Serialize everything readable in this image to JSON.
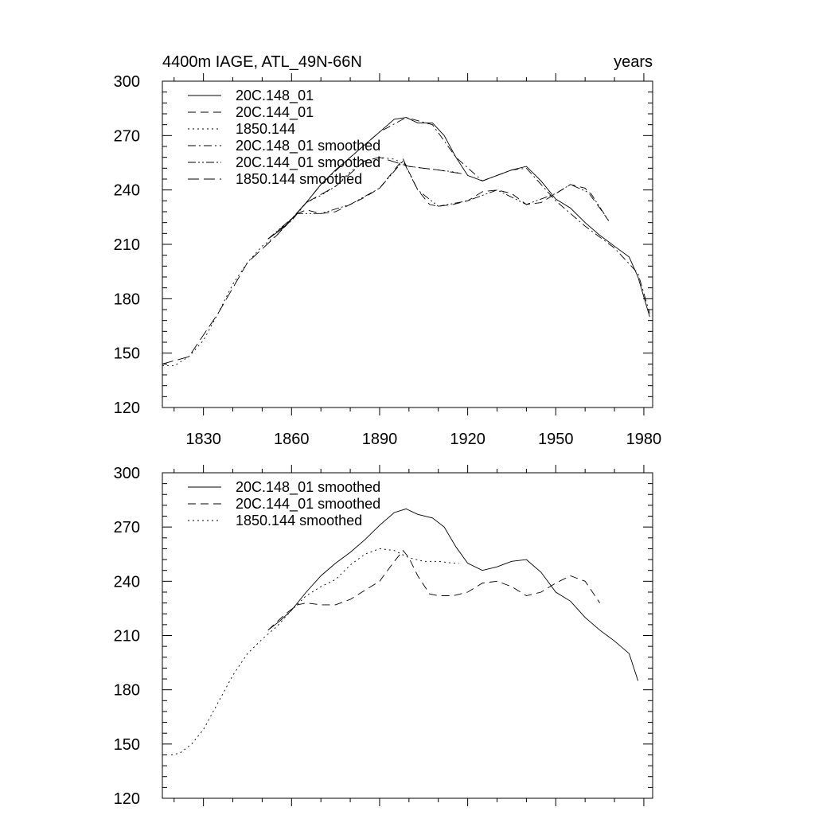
{
  "chart_data": [
    {
      "type": "line",
      "title_left": "4400m IAGE, ATL_49N-66N",
      "title_right": "years",
      "xlim": [
        1816,
        1983
      ],
      "ylim": [
        120,
        300
      ],
      "xticks": [
        1830,
        1860,
        1890,
        1920,
        1950,
        1980
      ],
      "xtick_labels": [
        "1830",
        "1860",
        "1890",
        "1920",
        "1950",
        "1980"
      ],
      "yticks": [
        120,
        150,
        180,
        210,
        240,
        270,
        300
      ],
      "ytick_labels": [
        "120",
        "150",
        "180",
        "210",
        "240",
        "270",
        "300"
      ],
      "legend_location": "top-left",
      "series": [
        {
          "name": "20C.148_01",
          "dash": "solid",
          "x": [
            1852,
            1858,
            1865,
            1870,
            1875,
            1880,
            1885,
            1890,
            1895,
            1899,
            1903,
            1908,
            1912,
            1916,
            1920,
            1925,
            1930,
            1935,
            1940,
            1945,
            1950,
            1955,
            1960,
            1965,
            1970,
            1975,
            1978,
            1982
          ],
          "y": [
            213,
            220,
            233,
            243,
            251,
            258,
            265,
            272,
            279,
            280,
            277,
            277,
            270,
            258,
            248,
            245,
            248,
            251,
            253,
            245,
            235,
            230,
            222,
            215,
            209,
            203,
            192,
            170
          ]
        },
        {
          "name": "20C.144_01",
          "dash": "dash",
          "x": [
            1852,
            1858,
            1862,
            1865,
            1870,
            1875,
            1880,
            1885,
            1890,
            1895,
            1898,
            1900,
            1903,
            1907,
            1910,
            1915,
            1920,
            1925,
            1930,
            1935,
            1940,
            1945,
            1950,
            1955,
            1960,
            1965,
            1968
          ],
          "y": [
            213,
            221,
            227,
            229,
            227,
            228,
            232,
            236,
            241,
            251,
            257,
            250,
            240,
            232,
            231,
            232,
            234,
            239,
            240,
            238,
            232,
            233,
            238,
            243,
            241,
            230,
            223
          ]
        },
        {
          "name": "1850.144",
          "dash": "dot",
          "x": [
            1816,
            1820,
            1825,
            1830,
            1835,
            1840,
            1845,
            1850,
            1855,
            1860,
            1865,
            1870,
            1875,
            1880,
            1885,
            1890,
            1895,
            1900,
            1905,
            1910,
            1915,
            1918
          ],
          "y": [
            143,
            143,
            148,
            157,
            172,
            188,
            200,
            209,
            215,
            224,
            233,
            237,
            242,
            250,
            256,
            258,
            257,
            253,
            252,
            251,
            250,
            249
          ]
        },
        {
          "name": "20C.148_01 smoothed",
          "dash": "dashdot",
          "x": [
            1852,
            1860,
            1870,
            1880,
            1890,
            1899,
            1908,
            1916,
            1925,
            1935,
            1940,
            1950,
            1960,
            1970,
            1978,
            1982
          ],
          "y": [
            213,
            223,
            243,
            258,
            272,
            280,
            276,
            258,
            245,
            251,
            252,
            234,
            220,
            208,
            194,
            172
          ]
        },
        {
          "name": "20C.144_01 smoothed",
          "dash": "dashdotdot",
          "x": [
            1852,
            1862,
            1870,
            1880,
            1890,
            1898,
            1903,
            1910,
            1920,
            1930,
            1940,
            1950,
            1955,
            1962,
            1968
          ],
          "y": [
            213,
            227,
            227,
            232,
            241,
            256,
            240,
            231,
            234,
            240,
            232,
            238,
            243,
            238,
            223
          ]
        },
        {
          "name": "1850.144 smoothed",
          "dash": "longdash",
          "x": [
            1816,
            1825,
            1835,
            1845,
            1855,
            1865,
            1875,
            1885,
            1890,
            1900,
            1910,
            1918
          ],
          "y": [
            144,
            148,
            172,
            200,
            215,
            233,
            242,
            256,
            258,
            253,
            251,
            249
          ]
        }
      ]
    },
    {
      "type": "line",
      "xlim": [
        1816,
        1983
      ],
      "ylim": [
        120,
        300
      ],
      "xticks": [
        1830,
        1860,
        1890,
        1920,
        1950,
        1980
      ],
      "yticks": [
        120,
        150,
        180,
        210,
        240,
        270,
        300
      ],
      "ytick_labels": [
        "120",
        "150",
        "180",
        "210",
        "240",
        "270",
        "300"
      ],
      "legend_location": "top-left",
      "series": [
        {
          "name": "20C.148_01 smoothed",
          "dash": "solid",
          "x": [
            1852,
            1856,
            1860,
            1865,
            1870,
            1875,
            1880,
            1885,
            1890,
            1895,
            1899,
            1903,
            1908,
            1912,
            1916,
            1920,
            1925,
            1930,
            1935,
            1940,
            1945,
            1950,
            1955,
            1960,
            1965,
            1970,
            1975,
            1978
          ],
          "y": [
            213,
            218,
            224,
            234,
            243,
            250,
            256,
            263,
            271,
            278,
            280,
            277,
            275,
            270,
            259,
            250,
            246,
            248,
            251,
            252,
            245,
            234,
            229,
            220,
            213,
            207,
            200,
            185
          ]
        },
        {
          "name": "20C.144_01 smoothed",
          "dash": "dash",
          "x": [
            1852,
            1858,
            1862,
            1865,
            1870,
            1875,
            1880,
            1885,
            1890,
            1895,
            1898,
            1900,
            1903,
            1907,
            1910,
            1915,
            1920,
            1925,
            1930,
            1935,
            1940,
            1945,
            1950,
            1955,
            1960,
            1965
          ],
          "y": [
            213,
            222,
            227,
            228,
            227,
            227,
            230,
            235,
            240,
            251,
            257,
            253,
            243,
            233,
            232,
            232,
            234,
            239,
            240,
            237,
            232,
            234,
            239,
            243,
            240,
            228
          ]
        },
        {
          "name": "1850.144 smoothed",
          "dash": "dot",
          "x": [
            1819,
            1822,
            1826,
            1830,
            1835,
            1840,
            1845,
            1850,
            1855,
            1860,
            1865,
            1870,
            1875,
            1880,
            1885,
            1890,
            1895,
            1900,
            1905,
            1910,
            1915,
            1917
          ],
          "y": [
            144,
            145,
            150,
            158,
            173,
            188,
            200,
            208,
            215,
            224,
            232,
            237,
            241,
            249,
            255,
            258,
            257,
            253,
            251,
            251,
            250,
            250
          ]
        }
      ]
    }
  ]
}
